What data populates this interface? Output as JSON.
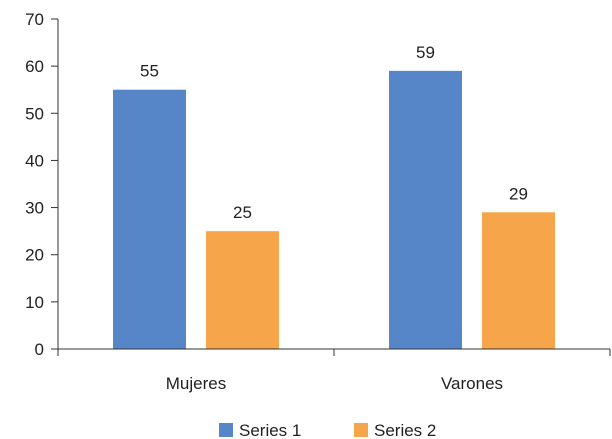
{
  "chart_data": {
    "type": "bar",
    "title": "",
    "xlabel": "",
    "ylabel": "",
    "categories": [
      "Mujeres",
      "Varones"
    ],
    "series": [
      {
        "name": "Series 1",
        "values": [
          55,
          59
        ],
        "color": "#5686c8"
      },
      {
        "name": "Series 2",
        "values": [
          25,
          29
        ],
        "color": "#f7a54a"
      }
    ],
    "ylim": [
      0,
      70
    ],
    "yticks": [
      0,
      10,
      20,
      30,
      40,
      50,
      60,
      70
    ],
    "grid": false,
    "data_labels": true,
    "legend_position": "bottom"
  }
}
